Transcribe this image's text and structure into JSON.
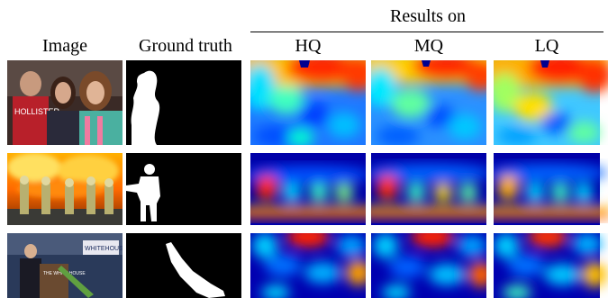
{
  "header": {
    "results_on": "Results on",
    "columns": [
      "Image",
      "Ground truth",
      "HQ",
      "MQ",
      "LQ"
    ]
  },
  "rows": [
    {
      "image": "party-photo-three-people",
      "ground_truth": "mask-person-left",
      "hq": "heatmap-row1-hq",
      "mq": "heatmap-row1-mq",
      "lq": "heatmap-row1-lq"
    },
    {
      "image": "firefighters-flames",
      "ground_truth": "mask-firefighter",
      "hq": "heatmap-row2-hq",
      "mq": "heatmap-row2-mq",
      "lq": "heatmap-row2-lq"
    },
    {
      "image": "press-briefing-podium",
      "ground_truth": "mask-diagonal-object",
      "hq": "heatmap-row3-hq",
      "mq": "heatmap-row3-mq",
      "lq": "heatmap-row3-lq"
    }
  ],
  "colors": {
    "jet_low": "#00008f",
    "jet_mid": "#00ffff",
    "jet_high": "#ff0000"
  }
}
